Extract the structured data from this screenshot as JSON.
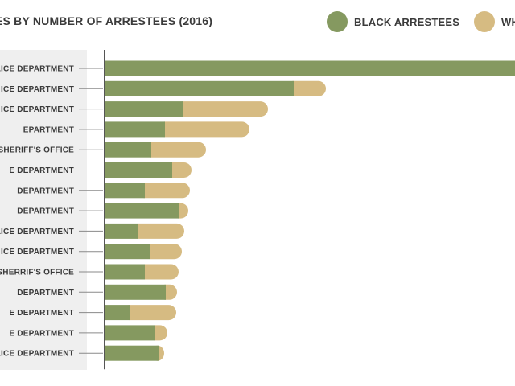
{
  "chart_data": {
    "type": "bar",
    "orientation": "horizontal",
    "stacked": true,
    "title": "ES BY NUMBER OF ARRESTEES (2016)",
    "categories": [
      "LICE DEPARTMENT",
      "ICE DEPARTMENT",
      "ICE DEPARTMENT",
      "EPARTMENT",
      "Y SHERIFF'S OFFICE",
      "E DEPARTMENT",
      " DEPARTMENT",
      "DEPARTMENT",
      "LICE DEPARTMENT",
      "ICE DEPARTMENT",
      "Y SHERRIF'S OFFICE",
      "DEPARTMENT",
      "E DEPARTMENT",
      "E DEPARTMENT",
      "LICE DEPARTMENT"
    ],
    "series": [
      {
        "name": "BLACK ARRESTEES",
        "color": "#859960",
        "values": [
          530,
          235,
          98,
          75,
          58,
          84,
          50,
          92,
          42,
          57,
          50,
          76,
          31,
          63,
          67
        ]
      },
      {
        "name": "WH",
        "color": "#d6bb82",
        "values": [
          0,
          40,
          105,
          105,
          68,
          24,
          56,
          12,
          57,
          39,
          42,
          14,
          58,
          15,
          7
        ]
      }
    ],
    "grid": false
  },
  "legend": {
    "black_color": "#859960",
    "white_color": "#d6bb82"
  }
}
